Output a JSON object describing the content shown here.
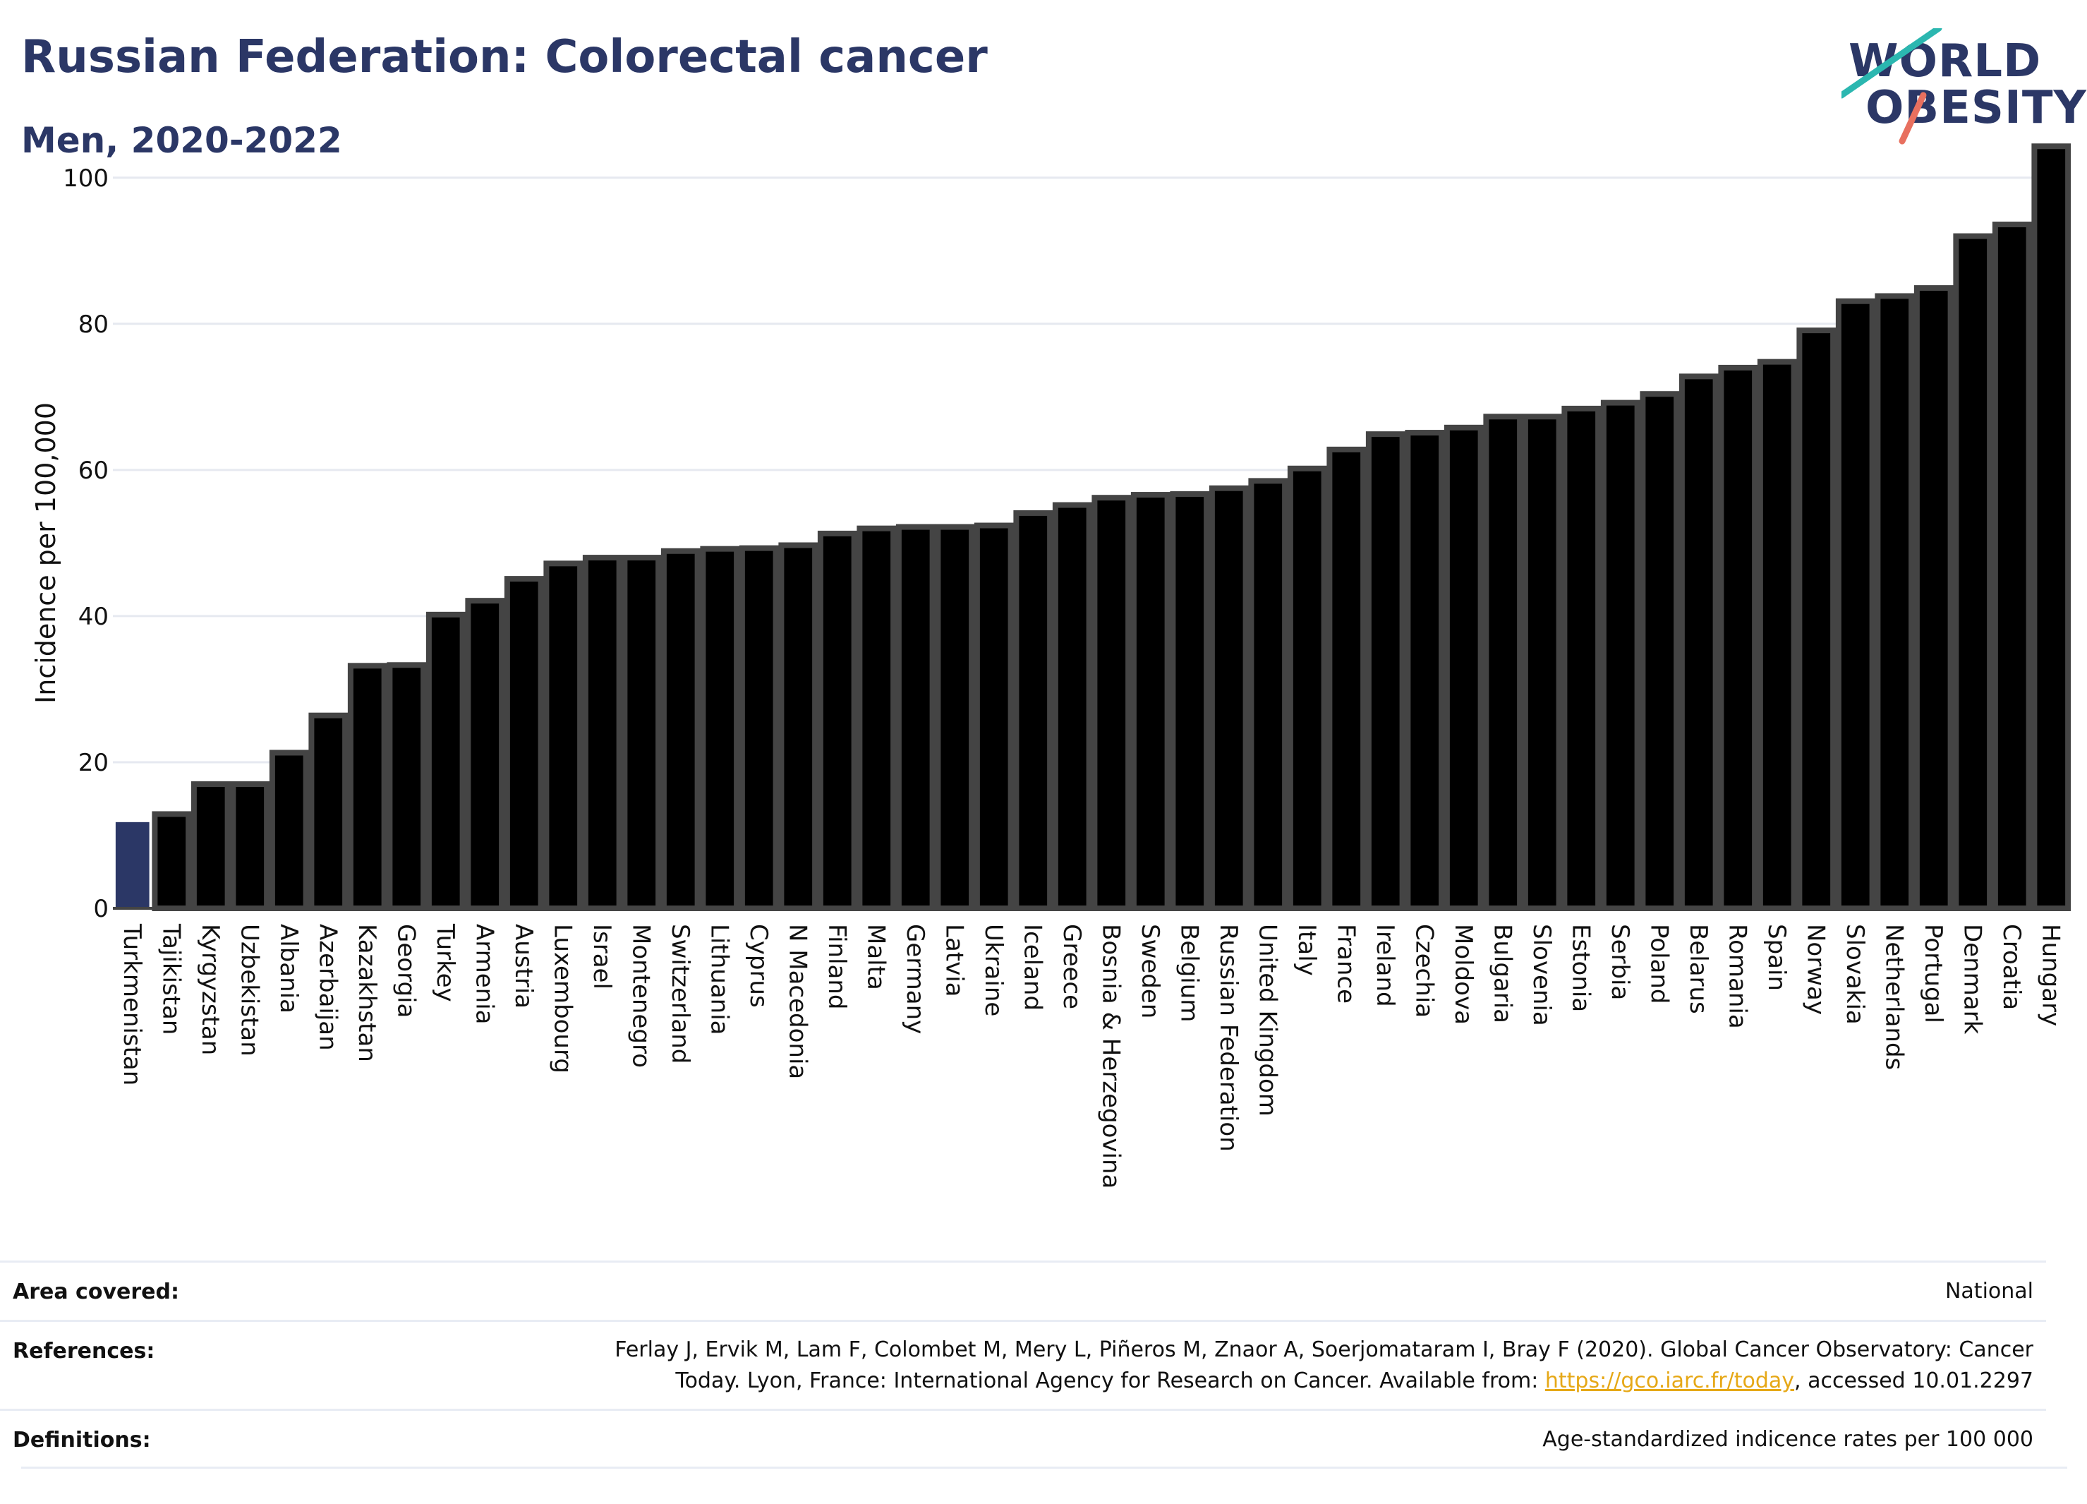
{
  "header": {
    "title": "Russian Federation: Colorectal cancer",
    "subtitle": "Men, 2020-2022"
  },
  "logo": {
    "line1": "WORLD",
    "line2": "OBESITY",
    "colors": {
      "teal": "#2bb7b0",
      "coral": "#e8705f",
      "navy": "#2b3766"
    }
  },
  "chart_data": {
    "type": "bar",
    "title": "Russian Federation: Colorectal cancer",
    "subtitle": "Men, 2020-2022",
    "xlabel": "",
    "ylabel": "Incidence per 100,000",
    "ylim": [
      0,
      105
    ],
    "yticks": [
      0,
      20,
      40,
      60,
      80,
      100
    ],
    "grid": true,
    "highlight_color": "#2b3766",
    "bar_color": "#000000",
    "bar_edge_color": "#444444",
    "highlighted_category": "Turkmenistan",
    "categories": [
      "Turkmenistan",
      "Tajikistan",
      "Kyrgyzstan",
      "Uzbekistan",
      "Albania",
      "Azerbaijan",
      "Kazakhstan",
      "Georgia",
      "Turkey",
      "Armenia",
      "Austria",
      "Luxembourg",
      "Israel",
      "Montenegro",
      "Switzerland",
      "Lithuania",
      "Cyprus",
      "N Macedonia",
      "Finland",
      "Malta",
      "Germany",
      "Latvia",
      "Ukraine",
      "Iceland",
      "Greece",
      "Bosnia & Herzegovina",
      "Sweden",
      "Belgium",
      "Russian Federation",
      "United Kingdom",
      "Italy",
      "France",
      "Ireland",
      "Czechia",
      "Moldova",
      "Bulgaria",
      "Slovenia",
      "Estonia",
      "Serbia",
      "Poland",
      "Belarus",
      "Romania",
      "Spain",
      "Norway",
      "Slovakia",
      "Netherlands",
      "Portugal",
      "Denmark",
      "Croatia",
      "Hungary"
    ],
    "values": [
      11.8,
      12.9,
      17.0,
      17.0,
      21.3,
      26.4,
      33.2,
      33.3,
      40.2,
      42.1,
      45.1,
      47.2,
      48.0,
      48.0,
      48.9,
      49.2,
      49.3,
      49.7,
      51.3,
      52.0,
      52.2,
      52.2,
      52.4,
      54.1,
      55.2,
      56.2,
      56.6,
      56.7,
      57.5,
      58.5,
      60.2,
      62.8,
      64.9,
      65.1,
      65.8,
      67.3,
      67.3,
      68.4,
      69.2,
      70.4,
      72.8,
      74.0,
      74.8,
      79.1,
      83.1,
      83.8,
      84.9,
      92.0,
      93.6,
      104.3
    ]
  },
  "footer": {
    "area_label": "Area covered:",
    "area_value": "National",
    "references_label": "References:",
    "references_line1": "Ferlay J, Ervik M, Lam F, Colombet M, Mery L, Piñeros M, Znaor A, Soerjomataram I, Bray F (2020). Global Cancer Observatory: Cancer",
    "references_line2_pre": "Today. Lyon, France: International Agency for Research on Cancer. Available from: ",
    "references_link": "https://gco.iarc.fr/today",
    "references_line2_post": ", accessed 10.01.2297",
    "definitions_label": "Definitions:",
    "definitions_value": "Age-standardized indicence rates per 100 000"
  }
}
